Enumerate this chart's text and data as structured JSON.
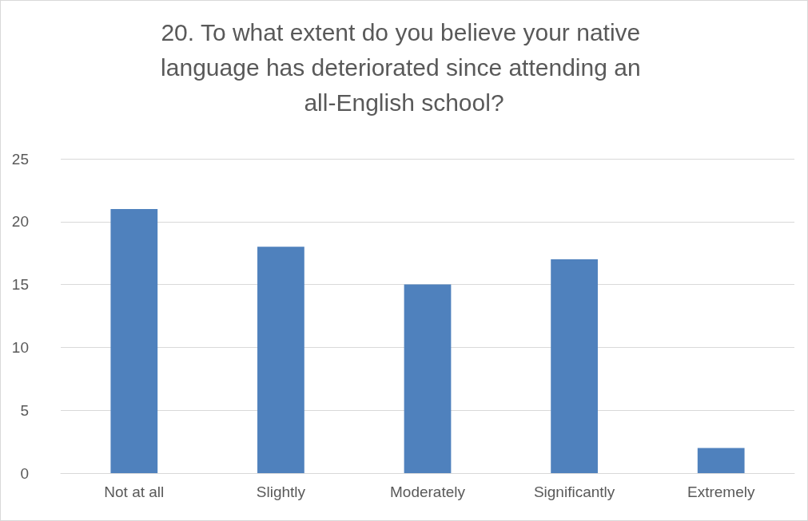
{
  "chart_data": {
    "type": "bar",
    "title": "20. To what extent do you believe your native language has deteriorated since attending an all-English school?",
    "categories": [
      "Not at all",
      "Slightly",
      "Moderately",
      "Significantly",
      "Extremely"
    ],
    "values": [
      21,
      18,
      15,
      17,
      2
    ],
    "color": "#4f81bd",
    "ylim": [
      0,
      25
    ],
    "yticks": [
      0,
      5,
      10,
      15,
      20,
      25
    ],
    "grid": "y"
  }
}
